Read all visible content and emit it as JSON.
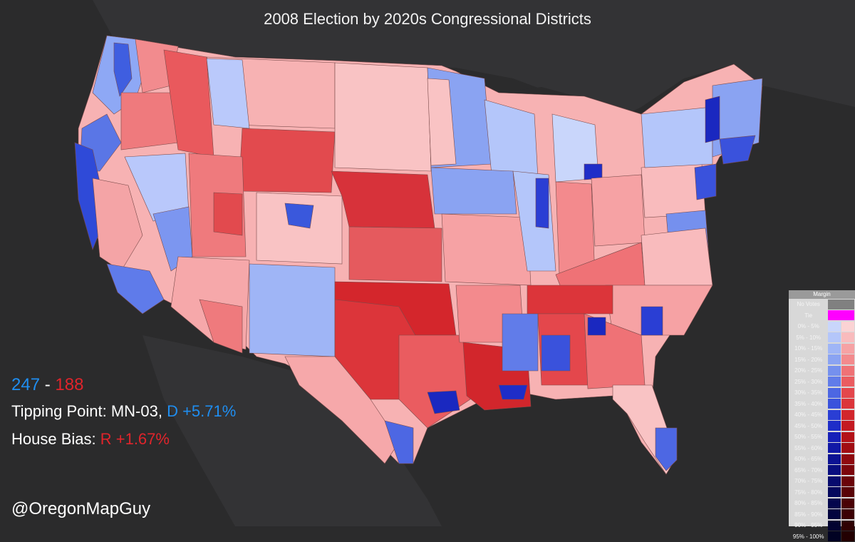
{
  "title": "2008 Election by 2020s Congressional Districts",
  "summary": {
    "dem_seats": "247",
    "separator": "-",
    "rep_seats": "188",
    "tipping_label": "Tipping Point: MN-03, ",
    "tipping_value": "D +5.71%",
    "bias_label": "House Bias: ",
    "bias_value": "R +1.67%"
  },
  "credit": "@OregonMapGuy",
  "legend": {
    "title": "Margin",
    "no_votes": "No Votes",
    "tie": "Tie",
    "no_votes_color": "#808080",
    "tie_color": "#ff00ff",
    "bins": [
      {
        "label": "0% - 5%",
        "d": "#c9d6fb",
        "r": "#fbd3d4"
      },
      {
        "label": "5% - 10%",
        "d": "#b4c6fa",
        "r": "#f9bbbd"
      },
      {
        "label": "10% - 15%",
        "d": "#9fb5f6",
        "r": "#f6a2a4"
      },
      {
        "label": "15% - 20%",
        "d": "#8aa3f2",
        "r": "#f38a8d"
      },
      {
        "label": "20% - 25%",
        "d": "#7590ee",
        "r": "#ef7276"
      },
      {
        "label": "25% - 30%",
        "d": "#617ce9",
        "r": "#ea5c60"
      },
      {
        "label": "30% - 35%",
        "d": "#4d67e3",
        "r": "#e4474c"
      },
      {
        "label": "35% - 40%",
        "d": "#3a52dc",
        "r": "#dc353a"
      },
      {
        "label": "40% - 45%",
        "d": "#2a3ed4",
        "r": "#d2262c"
      },
      {
        "label": "45% - 50%",
        "d": "#1e2dc8",
        "r": "#c41a21"
      },
      {
        "label": "50% - 55%",
        "d": "#1720b8",
        "r": "#b31218"
      },
      {
        "label": "55% - 60%",
        "d": "#1118a6",
        "r": "#a10d13"
      },
      {
        "label": "60% - 65%",
        "d": "#0c1293",
        "r": "#8f090f"
      },
      {
        "label": "65% - 70%",
        "d": "#090e80",
        "r": "#7c060c"
      },
      {
        "label": "70% - 75%",
        "d": "#070b6e",
        "r": "#6a0409"
      },
      {
        "label": "75% - 80%",
        "d": "#05085d",
        "r": "#590307"
      },
      {
        "label": "80% - 85%",
        "d": "#04064d",
        "r": "#4a0205"
      },
      {
        "label": "85% - 90%",
        "d": "#03043e",
        "r": "#3c0104"
      },
      {
        "label": "90% - 95%",
        "d": "#020330",
        "r": "#2f0103"
      },
      {
        "label": "95% - 100%",
        "d": "#010223",
        "r": "#230002"
      }
    ]
  }
}
